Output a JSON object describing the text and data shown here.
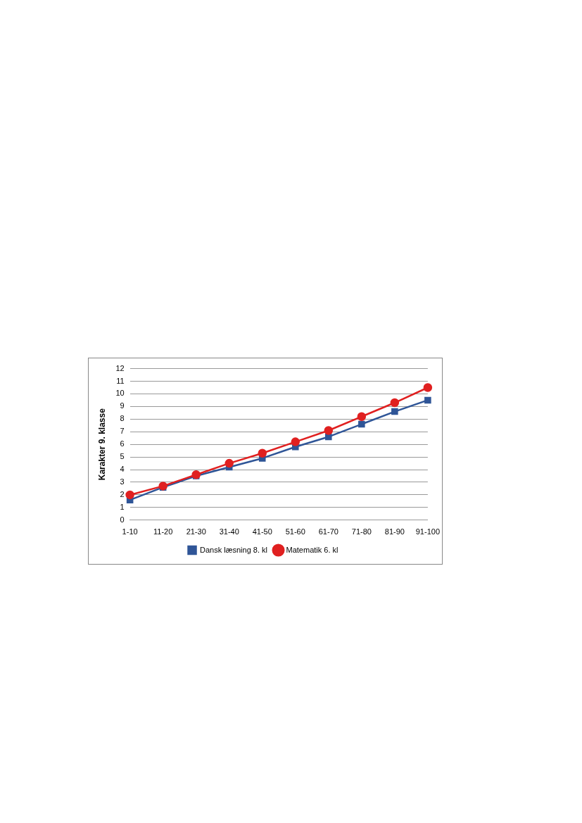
{
  "chart_data": {
    "type": "line",
    "ylabel": "Karakter 9. klasse",
    "categories": [
      "1-10",
      "11-20",
      "21-30",
      "31-40",
      "41-50",
      "51-60",
      "61-70",
      "71-80",
      "81-90",
      "91-100"
    ],
    "series": [
      {
        "name": "Dansk læsning 8. kl",
        "color": "#2f5597",
        "marker": "square",
        "values": [
          1.6,
          2.6,
          3.5,
          4.2,
          4.9,
          5.8,
          6.6,
          7.6,
          8.6,
          9.5
        ]
      },
      {
        "name": "Matematik 6. kl",
        "color": "#e02020",
        "marker": "circle",
        "values": [
          2.0,
          2.7,
          3.6,
          4.5,
          5.3,
          6.2,
          7.1,
          8.2,
          9.3,
          10.5
        ]
      }
    ],
    "ylim": [
      0,
      12
    ],
    "yticks": [
      0,
      1,
      2,
      3,
      4,
      5,
      6,
      7,
      8,
      9,
      10,
      11,
      12
    ],
    "grid": "y",
    "legend": "bottom"
  }
}
